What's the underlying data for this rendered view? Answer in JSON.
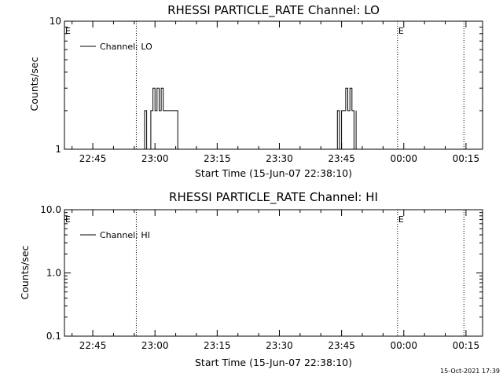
{
  "stamp": "15-Oct-2021 17:39",
  "colors": {
    "background": "#ffffff",
    "foreground": "#000000"
  },
  "chart_data": [
    {
      "type": "line",
      "title": "RHESSI PARTICLE_RATE Channel: LO",
      "xlabel": "Start Time (15-Jun-07 22:38:10)",
      "ylabel": "Counts/sec",
      "yscale": "log",
      "ylim": [
        1,
        10
      ],
      "ytick_values": [
        1,
        10
      ],
      "ytick_labels": [
        "1",
        "10"
      ],
      "xlim": [
        "22:38:10",
        "00:19:00"
      ],
      "xtick_values": [
        "22:45",
        "23:00",
        "23:15",
        "23:30",
        "23:45",
        "00:00",
        "00:15"
      ],
      "xtick_labels": [
        "22:45",
        "23:00",
        "23:15",
        "23:30",
        "23:45",
        "00:00",
        "00:15"
      ],
      "grid": false,
      "legend_position": "top-left",
      "series": [
        {
          "name": "Channel: LO",
          "x": [
            "22:57:30",
            "22:57:30",
            "22:58:00",
            "22:58:00",
            "22:59:00",
            "22:59:00",
            "22:59:30",
            "22:59:30",
            "23:00:00",
            "23:00:00",
            "23:00:30",
            "23:00:30",
            "23:01:00",
            "23:01:00",
            "23:01:30",
            "23:01:30",
            "23:02:00",
            "23:02:00",
            "23:02:30",
            "23:02:30",
            "23:05:30",
            "23:05:30",
            "23:44:00",
            "23:44:00",
            "23:44:30",
            "23:44:30",
            "23:45:00",
            "23:45:00",
            "23:45:30",
            "23:45:30",
            "23:46:00",
            "23:46:00",
            "23:46:30",
            "23:46:30",
            "23:47:00",
            "23:47:00",
            "23:47:30",
            "23:47:30",
            "23:48:00",
            "23:48:00",
            "23:48:30",
            "23:48:30"
          ],
          "y": [
            1,
            2,
            2,
            1,
            1,
            2,
            2,
            3,
            3,
            2,
            2,
            3,
            3,
            2,
            2,
            3,
            3,
            2,
            2,
            2,
            2,
            1,
            1,
            2,
            2,
            1,
            1,
            2,
            2,
            2,
            2,
            3,
            3,
            2,
            2,
            3,
            3,
            2,
            2,
            1,
            1,
            2
          ]
        }
      ],
      "vlines": [
        {
          "x": "22:55:30",
          "label": ""
        },
        {
          "x": "23:58:30",
          "label": ""
        },
        {
          "x": "00:14:30",
          "label": ""
        }
      ],
      "markers": [
        {
          "x": "22:38:10",
          "label": "E"
        },
        {
          "x": "23:58:30",
          "label": "E"
        }
      ]
    },
    {
      "type": "line",
      "title": "RHESSI PARTICLE_RATE Channel: HI",
      "xlabel": "Start Time (15-Jun-07 22:38:10)",
      "ylabel": "Counts/sec",
      "yscale": "log",
      "ylim": [
        0.1,
        10
      ],
      "ytick_values": [
        0.1,
        1,
        10
      ],
      "ytick_labels": [
        "0.1",
        "1.0",
        "10.0"
      ],
      "xlim": [
        "22:38:10",
        "00:19:00"
      ],
      "xtick_values": [
        "22:45",
        "23:00",
        "23:15",
        "23:30",
        "23:45",
        "00:00",
        "00:15"
      ],
      "xtick_labels": [
        "22:45",
        "23:00",
        "23:15",
        "23:30",
        "23:45",
        "00:00",
        "00:15"
      ],
      "grid": false,
      "legend_position": "top-left",
      "series": [
        {
          "name": "Channel: HI",
          "x": [],
          "y": []
        }
      ],
      "vlines": [
        {
          "x": "22:55:30",
          "label": ""
        },
        {
          "x": "23:58:30",
          "label": ""
        },
        {
          "x": "00:14:30",
          "label": ""
        }
      ],
      "markers": [
        {
          "x": "22:38:10",
          "label": "E"
        },
        {
          "x": "23:58:30",
          "label": "E"
        }
      ]
    }
  ]
}
